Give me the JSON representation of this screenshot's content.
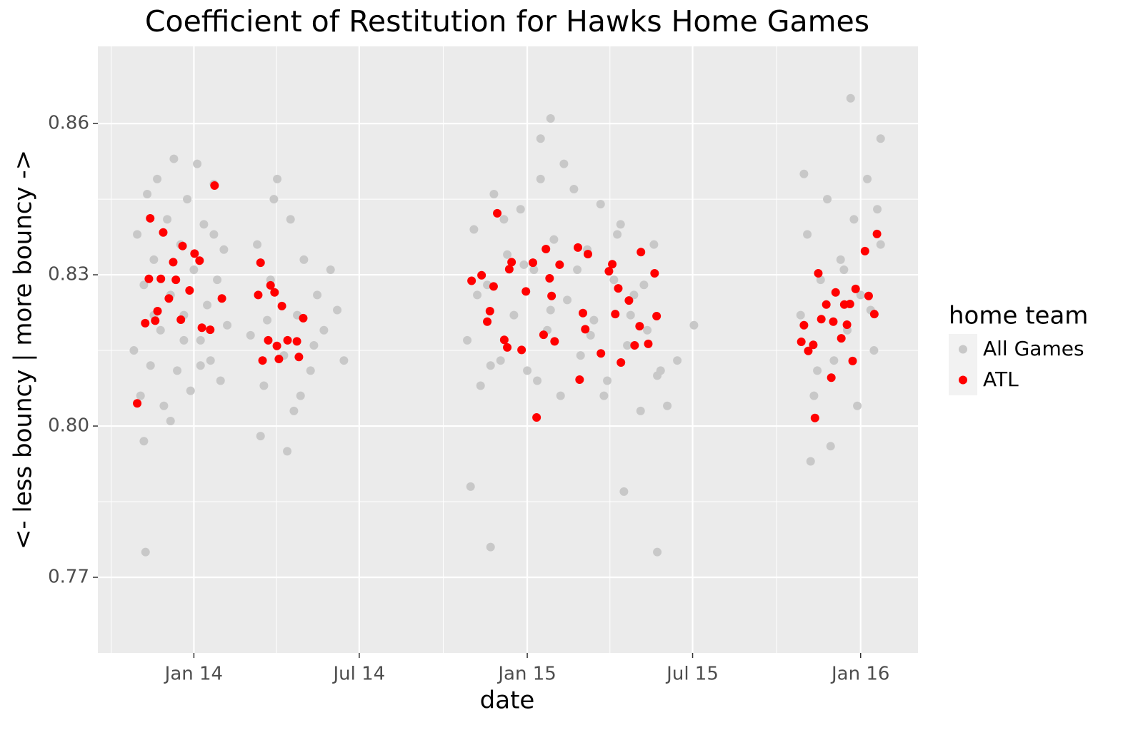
{
  "chart_data": {
    "type": "scatter",
    "title": "Coefficient of Restitution for Hawks Home Games",
    "xlabel": "date",
    "ylabel": "<- less bouncy | more bouncy ->",
    "legend_title": "home team",
    "legend_position": "right",
    "grid": true,
    "xlim": [
      2013.712,
      2016.172
    ],
    "ylim": [
      0.755,
      0.8753
    ],
    "xticks": [
      {
        "value": 2014.0,
        "label": "Jan 14"
      },
      {
        "value": 2014.496,
        "label": "Jul 14"
      },
      {
        "value": 2015.0,
        "label": "Jan 15"
      },
      {
        "value": 2015.496,
        "label": "Jul 15"
      },
      {
        "value": 2016.0,
        "label": "Jan 16"
      }
    ],
    "yticks": [
      0.77,
      {
        "value": 0.8,
        "label": "0.80"
      },
      0.83,
      0.86
    ],
    "series": [
      {
        "name": "All Games",
        "color": "#c8c8c8",
        "x": [
          2013.82,
          2013.83,
          2013.84,
          2013.85,
          2013.86,
          2013.87,
          2013.88,
          2013.89,
          2013.9,
          2013.91,
          2013.92,
          2013.93,
          2013.94,
          2013.95,
          2013.96,
          2013.97,
          2013.98,
          2013.99,
          2014.0,
          2014.01,
          2014.02,
          2014.03,
          2014.04,
          2014.05,
          2014.06,
          2014.07,
          2014.08,
          2014.09,
          2014.1,
          2013.85,
          2013.88,
          2013.93,
          2013.97,
          2014.02,
          2014.06,
          2013.855,
          2014.17,
          2014.19,
          2014.21,
          2014.23,
          2014.25,
          2014.27,
          2014.29,
          2014.31,
          2014.33,
          2014.35,
          2014.37,
          2014.39,
          2014.41,
          2014.43,
          2014.45,
          2014.2,
          2014.24,
          2014.28,
          2014.32,
          2014.36,
          2014.22,
          2014.3,
          2014.82,
          2014.84,
          2014.86,
          2014.88,
          2014.9,
          2014.92,
          2014.94,
          2014.96,
          2014.98,
          2015.0,
          2015.02,
          2015.04,
          2015.06,
          2015.08,
          2015.1,
          2015.12,
          2015.14,
          2015.16,
          2015.18,
          2015.2,
          2015.22,
          2015.24,
          2015.26,
          2015.28,
          2015.3,
          2015.32,
          2015.34,
          2015.36,
          2015.38,
          2015.4,
          2015.42,
          2015.45,
          2015.5,
          2014.85,
          2014.89,
          2014.93,
          2014.99,
          2015.03,
          2015.07,
          2015.11,
          2015.15,
          2015.19,
          2015.23,
          2015.27,
          2015.31,
          2015.35,
          2015.39,
          2014.83,
          2014.89,
          2015.07,
          2015.39,
          2015.04,
          2015.29,
          2015.82,
          2015.84,
          2015.86,
          2015.88,
          2015.9,
          2015.92,
          2015.94,
          2015.96,
          2015.98,
          2016.0,
          2016.02,
          2016.04,
          2016.06,
          2015.83,
          2015.87,
          2015.91,
          2015.95,
          2015.99,
          2016.03,
          2016.05,
          2015.85,
          2015.97,
          2016.06
        ],
        "values": [
          0.815,
          0.838,
          0.806,
          0.828,
          0.846,
          0.812,
          0.833,
          0.849,
          0.819,
          0.804,
          0.841,
          0.826,
          0.853,
          0.811,
          0.836,
          0.822,
          0.845,
          0.807,
          0.831,
          0.852,
          0.817,
          0.84,
          0.824,
          0.813,
          0.848,
          0.829,
          0.809,
          0.835,
          0.82,
          0.797,
          0.822,
          0.801,
          0.817,
          0.812,
          0.838,
          0.775,
          0.818,
          0.836,
          0.808,
          0.829,
          0.849,
          0.814,
          0.841,
          0.822,
          0.833,
          0.811,
          0.826,
          0.819,
          0.831,
          0.823,
          0.813,
          0.798,
          0.845,
          0.795,
          0.806,
          0.816,
          0.821,
          0.803,
          0.817,
          0.839,
          0.808,
          0.828,
          0.846,
          0.813,
          0.834,
          0.822,
          0.843,
          0.811,
          0.831,
          0.849,
          0.819,
          0.837,
          0.806,
          0.825,
          0.847,
          0.814,
          0.835,
          0.821,
          0.844,
          0.809,
          0.829,
          0.84,
          0.816,
          0.826,
          0.803,
          0.819,
          0.836,
          0.811,
          0.804,
          0.813,
          0.82,
          0.826,
          0.812,
          0.841,
          0.832,
          0.809,
          0.823,
          0.852,
          0.831,
          0.818,
          0.806,
          0.838,
          0.822,
          0.828,
          0.81,
          0.788,
          0.776,
          0.861,
          0.775,
          0.857,
          0.787,
          0.822,
          0.838,
          0.806,
          0.829,
          0.845,
          0.813,
          0.833,
          0.819,
          0.841,
          0.826,
          0.849,
          0.815,
          0.836,
          0.85,
          0.811,
          0.796,
          0.831,
          0.804,
          0.823,
          0.843,
          0.793,
          0.865,
          0.857
        ]
      },
      {
        "name": "ATL",
        "color": "#ff0000",
        "x": [
          2013.83,
          2013.854,
          2013.865,
          2013.869,
          2013.884,
          2013.901,
          2013.908,
          2013.925,
          2013.938,
          2013.946,
          2013.966,
          2013.987,
          2014.002,
          2014.017,
          2014.024,
          2014.049,
          2014.062,
          2014.084,
          2013.891,
          2013.961,
          2014.193,
          2014.2,
          2014.206,
          2014.223,
          2014.23,
          2014.242,
          2014.249,
          2014.264,
          2014.281,
          2014.309,
          2014.315,
          2014.328,
          2014.255,
          2014.833,
          2014.863,
          2014.88,
          2014.899,
          2014.91,
          2014.931,
          2014.946,
          2014.953,
          2014.983,
          2014.996,
          2015.017,
          2015.028,
          2015.049,
          2015.056,
          2015.067,
          2015.073,
          2015.082,
          2015.097,
          2015.152,
          2015.157,
          2015.167,
          2015.182,
          2015.174,
          2015.221,
          2015.245,
          2015.255,
          2015.264,
          2015.273,
          2015.281,
          2015.305,
          2015.322,
          2015.337,
          2015.341,
          2015.363,
          2015.382,
          2015.388,
          2014.888,
          2014.94,
          2015.822,
          2015.83,
          2015.843,
          2015.858,
          2015.863,
          2015.873,
          2015.882,
          2015.897,
          2015.912,
          2015.918,
          2015.925,
          2015.951,
          2015.959,
          2015.968,
          2015.976,
          2015.985,
          2016.013,
          2016.024,
          2016.041,
          2016.049,
          2015.942
        ],
        "values": [
          0.8045,
          0.8204,
          0.8292,
          0.8412,
          0.8209,
          0.8292,
          0.8384,
          0.8253,
          0.8325,
          0.829,
          0.8357,
          0.8269,
          0.8342,
          0.8328,
          0.8195,
          0.8191,
          0.8477,
          0.8253,
          0.8228,
          0.8211,
          0.826,
          0.8324,
          0.813,
          0.817,
          0.8279,
          0.8265,
          0.8159,
          0.8238,
          0.817,
          0.8168,
          0.8137,
          0.8214,
          0.8133,
          0.8288,
          0.8299,
          0.8207,
          0.8277,
          0.8422,
          0.8171,
          0.8311,
          0.8325,
          0.8151,
          0.8267,
          0.8324,
          0.8017,
          0.8181,
          0.8351,
          0.8293,
          0.8258,
          0.8168,
          0.832,
          0.8354,
          0.8092,
          0.8224,
          0.8341,
          0.8192,
          0.8144,
          0.8307,
          0.8321,
          0.8222,
          0.8273,
          0.8126,
          0.8249,
          0.816,
          0.8198,
          0.8345,
          0.8163,
          0.8303,
          0.8218,
          0.8228,
          0.8156,
          0.8167,
          0.82,
          0.8149,
          0.8161,
          0.8016,
          0.8303,
          0.8212,
          0.8241,
          0.8096,
          0.8207,
          0.8265,
          0.8241,
          0.8201,
          0.8242,
          0.8129,
          0.8272,
          0.8347,
          0.8258,
          0.8222,
          0.8381,
          0.8174
        ]
      }
    ]
  }
}
